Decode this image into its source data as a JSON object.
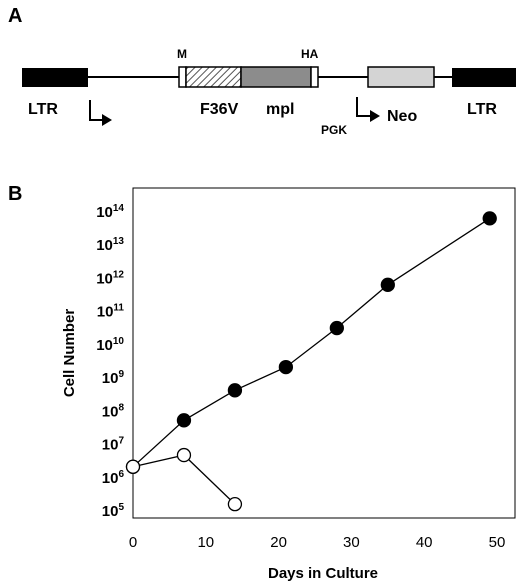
{
  "panels": {
    "a_label": "A",
    "b_label": "B"
  },
  "construct": {
    "ltr_left": "LTR",
    "ltr_right": "LTR",
    "m_label": "M",
    "ha_label": "HA",
    "f36v_label": "F36V",
    "mpl_label": "mpl",
    "pgk_label": "PGK",
    "neo_label": "Neo",
    "colors": {
      "ltr": "#000000",
      "f36v_hatch": "#555555",
      "mpl": "#8c8c8c",
      "neo": "#d4d4d4",
      "tag": "#ffffff"
    }
  },
  "chart_data": {
    "type": "scatter",
    "xlabel": "Days in Culture",
    "ylabel": "Cell Number",
    "x_ticks": [
      "0",
      "10",
      "20",
      "30",
      "40",
      "50"
    ],
    "xlim": [
      0,
      50
    ],
    "y_scale": "log",
    "ylim": [
      100000,
      100000000000000
    ],
    "y_tick_exponents": [
      "5",
      "6",
      "7",
      "8",
      "9",
      "10",
      "11",
      "12",
      "13",
      "14"
    ],
    "y_tick_base": "10",
    "grid": false,
    "series": [
      {
        "marker": "filled circle",
        "color": "#000000",
        "points": [
          {
            "x": 0,
            "y": 2000000
          },
          {
            "x": 7,
            "y": 50000000
          },
          {
            "x": 14,
            "y": 400000000
          },
          {
            "x": 21,
            "y": 2000000000
          },
          {
            "x": 28,
            "y": 30000000000
          },
          {
            "x": 35,
            "y": 600000000000
          },
          {
            "x": 49,
            "y": 60000000000000
          }
        ]
      },
      {
        "marker": "open circle",
        "color": "#000000",
        "points": [
          {
            "x": 0,
            "y": 2000000
          },
          {
            "x": 7,
            "y": 4500000
          },
          {
            "x": 14,
            "y": 150000
          }
        ]
      }
    ]
  }
}
